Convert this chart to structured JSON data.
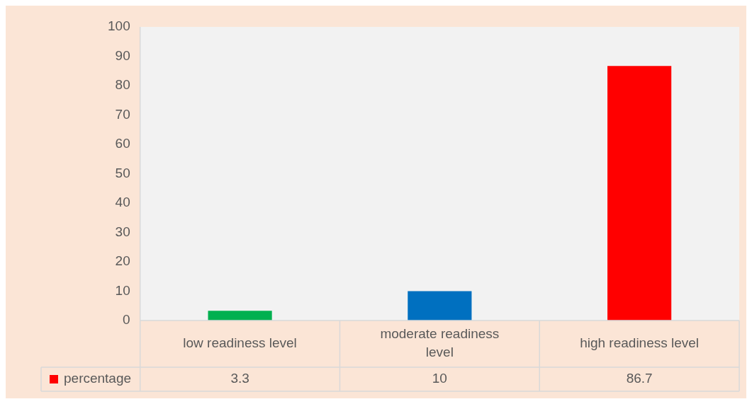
{
  "chart_data": {
    "type": "bar",
    "categories": [
      "low readiness level",
      "moderate readiness level",
      "high readiness level"
    ],
    "series": [
      {
        "name": "percentage",
        "color": "#ff0000",
        "colors": [
          "#00b050",
          "#0070c0",
          "#ff0000"
        ],
        "values": [
          3.3,
          10,
          86.7
        ]
      }
    ],
    "ylim": [
      0,
      100
    ],
    "yticks": [
      0,
      10,
      20,
      30,
      40,
      50,
      60,
      70,
      80,
      90,
      100
    ],
    "grid": false,
    "data_labels": true,
    "legend": "bottom"
  }
}
